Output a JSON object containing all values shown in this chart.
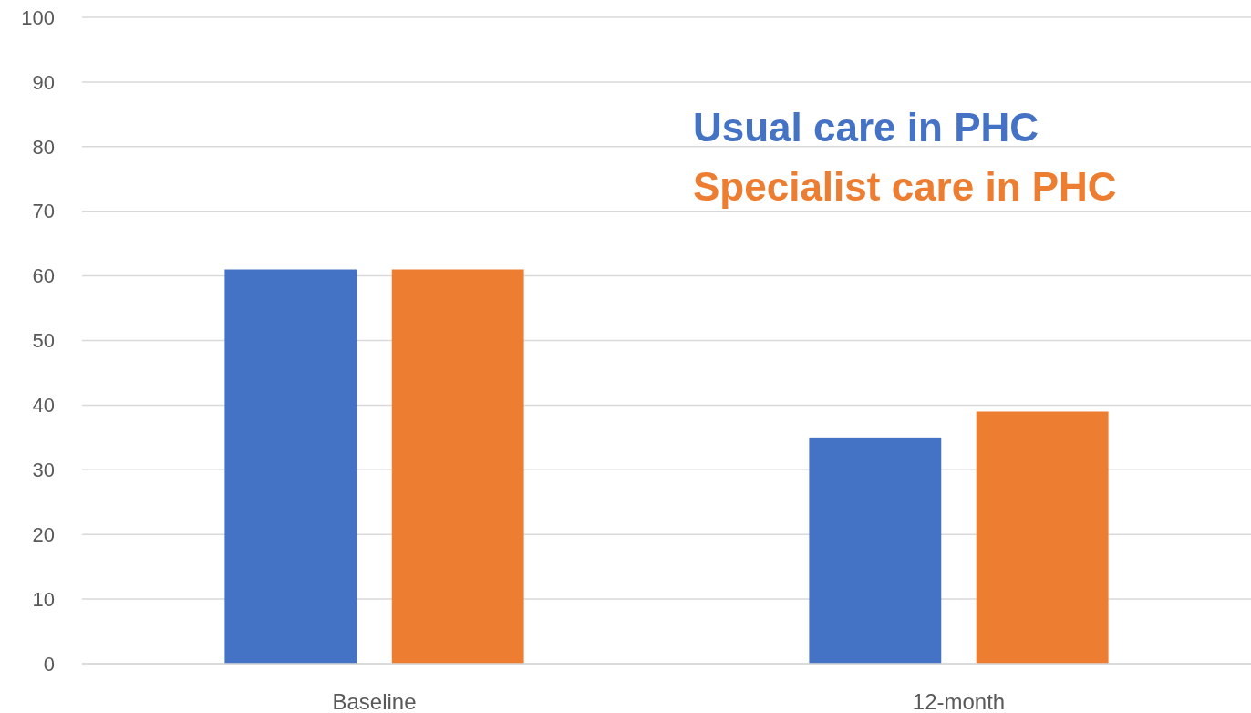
{
  "chart_data": {
    "type": "bar",
    "categories": [
      "Baseline",
      "12-month"
    ],
    "series": [
      {
        "name": "Usual care in PHC",
        "color": "#4472c4",
        "values": [
          61,
          35
        ]
      },
      {
        "name": "Specialist care in PHC",
        "color": "#ed7d31",
        "values": [
          61,
          39
        ]
      }
    ],
    "ylim": [
      0,
      100
    ],
    "yticks": [
      0,
      10,
      20,
      30,
      40,
      50,
      60,
      70,
      80,
      90,
      100
    ],
    "grid": "y",
    "legend": "top right"
  }
}
